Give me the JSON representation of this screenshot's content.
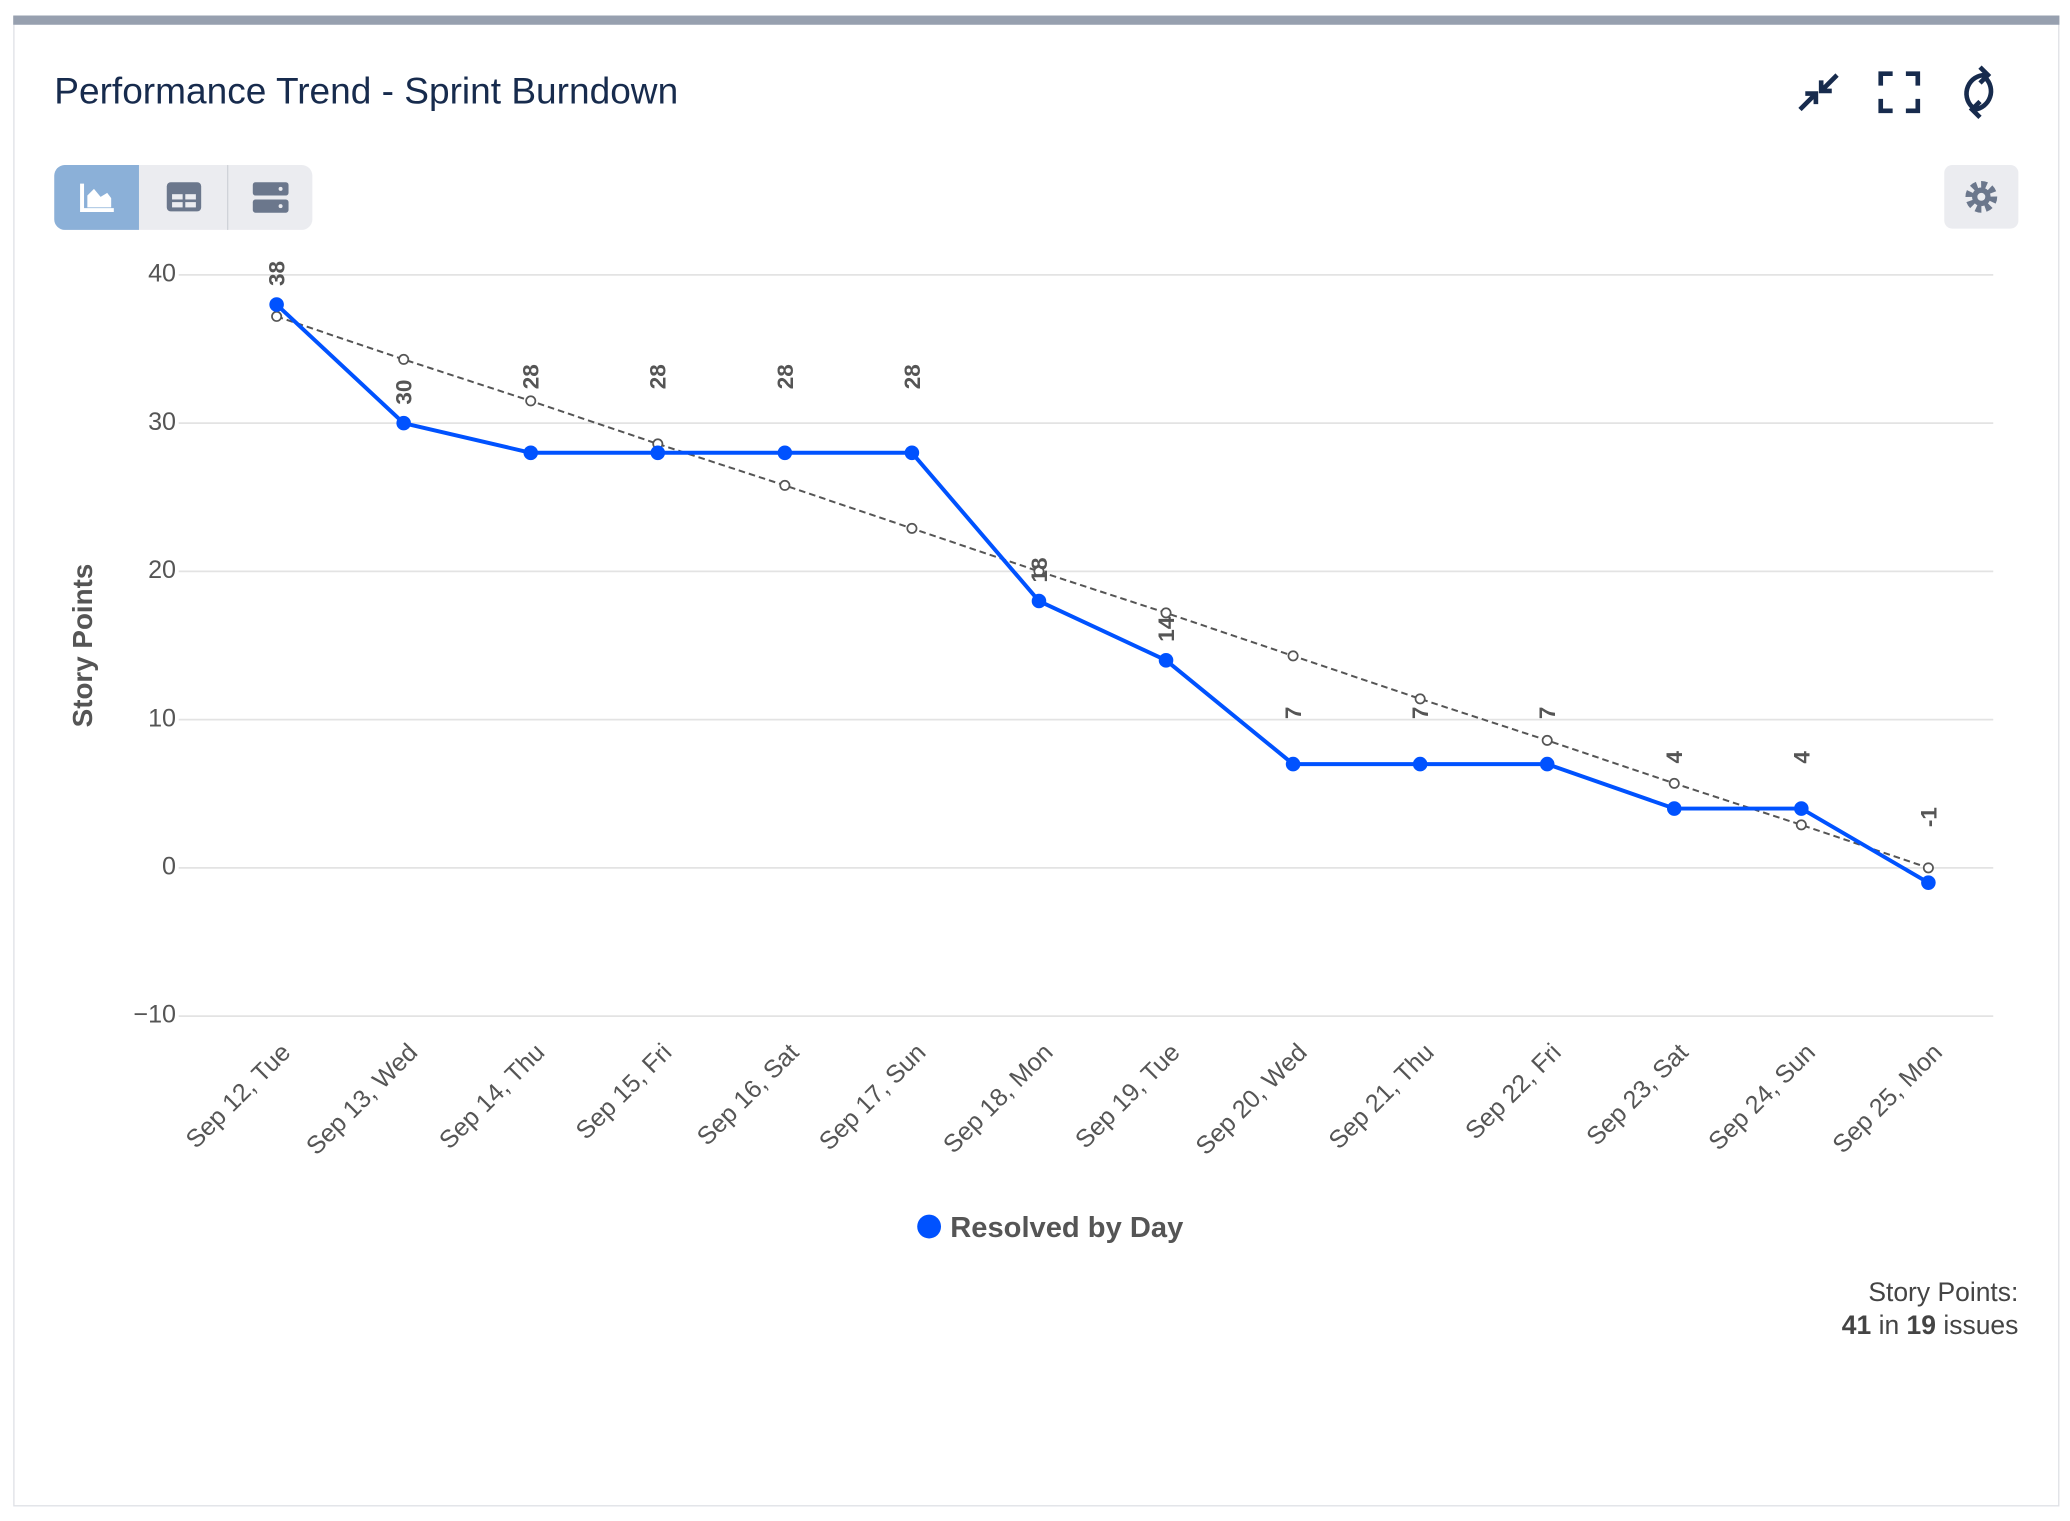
{
  "chart_data": {
    "type": "line",
    "title": "Performance Trend - Sprint Burndown",
    "y_label": "Story Points",
    "categories": [
      "Sep 12, Tue",
      "Sep 13, Wed",
      "Sep 14, Thu",
      "Sep 15, Fri",
      "Sep 16, Sat",
      "Sep 17, Sun",
      "Sep 18, Mon",
      "Sep 19, Tue",
      "Sep 20, Wed",
      "Sep 21, Thu",
      "Sep 22, Fri",
      "Sep 23, Sat",
      "Sep 24, Sun",
      "Sep 25, Mon"
    ],
    "series": [
      {
        "name": "Resolved by Day",
        "color": "#0052ff",
        "values": [
          38,
          30,
          28,
          28,
          28,
          28,
          18,
          14,
          7,
          7,
          7,
          4,
          4,
          -1
        ],
        "data_labels": true
      },
      {
        "color": "#555555",
        "dashed": true,
        "values": [
          37.2,
          34.3,
          31.5,
          28.6,
          25.8,
          22.9,
          20.0,
          17.2,
          14.3,
          11.4,
          8.6,
          5.7,
          2.9,
          0
        ]
      }
    ],
    "ylim": [
      -10,
      40
    ],
    "yticks": [
      {
        "value": -10,
        "label": "−10"
      },
      0,
      10,
      20,
      30,
      40
    ],
    "grid": true,
    "legend": "bottom",
    "footer": {
      "label": "Story Points:",
      "total": 41,
      "in": "in",
      "count": 19,
      "unit": "issues"
    }
  }
}
